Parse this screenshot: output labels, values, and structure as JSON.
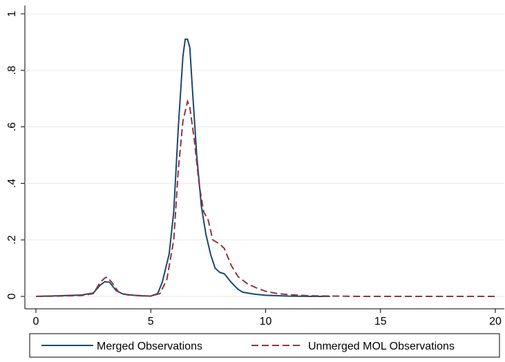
{
  "chart_data": {
    "type": "line",
    "xlim": [
      0,
      20
    ],
    "xticks": [
      0,
      5,
      10,
      15,
      20
    ],
    "ylim": [
      0,
      1
    ],
    "yticks": [
      0,
      {
        "value": 0.2,
        "label": ".2"
      },
      {
        "value": 0.4,
        "label": ".4"
      },
      {
        "value": 0.6,
        "label": ".6"
      },
      {
        "value": 0.8,
        "label": ".8"
      },
      1
    ],
    "grid": true,
    "legend": "bottom",
    "series": [
      {
        "name": "Merged Observations",
        "color": "#1a476f",
        "dash": "solid",
        "x": [
          0,
          1,
          2,
          2.5,
          2.8,
          3.0,
          3.2,
          3.5,
          3.8,
          4.5,
          5.0,
          5.3,
          5.5,
          5.8,
          6.0,
          6.2,
          6.4,
          6.5,
          6.6,
          6.7,
          6.8,
          7.0,
          7.2,
          7.4,
          7.6,
          7.8,
          8.0,
          8.2,
          8.5,
          8.8,
          9.0,
          9.5,
          10,
          11,
          12,
          12.8
        ],
        "values": [
          0,
          0.002,
          0.005,
          0.012,
          0.04,
          0.052,
          0.05,
          0.02,
          0.008,
          0.002,
          0.001,
          0.01,
          0.05,
          0.15,
          0.3,
          0.6,
          0.85,
          0.91,
          0.91,
          0.88,
          0.75,
          0.5,
          0.32,
          0.22,
          0.15,
          0.1,
          0.085,
          0.08,
          0.05,
          0.025,
          0.015,
          0.008,
          0.004,
          0.001,
          0,
          0
        ]
      },
      {
        "name": "Unmerged MOL Observations",
        "color": "#90353b",
        "dash": "dashed",
        "x": [
          0,
          1,
          2,
          2.5,
          2.8,
          3.0,
          3.1,
          3.3,
          3.6,
          4,
          5,
          5.4,
          5.7,
          6.0,
          6.2,
          6.4,
          6.6,
          6.7,
          6.9,
          7.1,
          7.3,
          7.5,
          7.7,
          8.0,
          8.2,
          8.5,
          8.8,
          9.2,
          9.6,
          10,
          10.5,
          11,
          12,
          13,
          14,
          20
        ],
        "values": [
          0,
          0.001,
          0.003,
          0.01,
          0.05,
          0.065,
          0.068,
          0.05,
          0.015,
          0.005,
          0.001,
          0.01,
          0.06,
          0.2,
          0.45,
          0.62,
          0.69,
          0.67,
          0.55,
          0.4,
          0.3,
          0.27,
          0.2,
          0.185,
          0.17,
          0.11,
          0.07,
          0.045,
          0.03,
          0.018,
          0.01,
          0.006,
          0.002,
          0.001,
          0,
          0
        ]
      }
    ]
  }
}
